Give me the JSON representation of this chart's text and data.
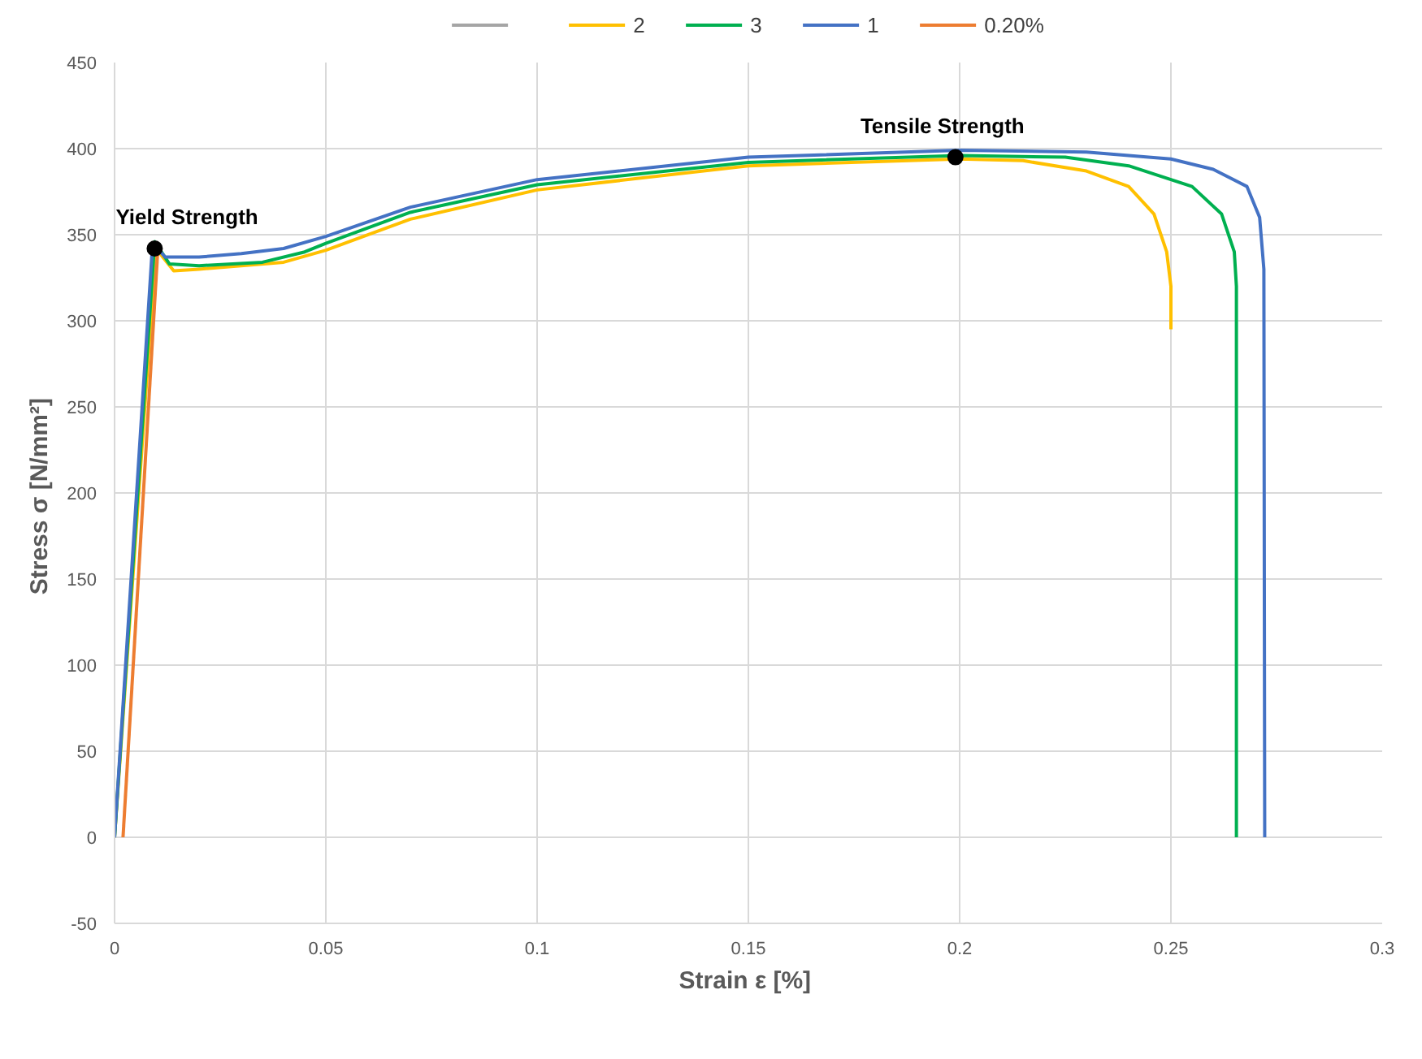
{
  "chart_data": {
    "type": "line",
    "xlabel": "Strain  ε [%]",
    "ylabel": "Stress  σ [N/mm²]",
    "xlim": [
      0,
      0.3
    ],
    "ylim": [
      -50,
      450
    ],
    "xticks": [
      0,
      0.05,
      0.1,
      0.15,
      0.2,
      0.25,
      0.3
    ],
    "yticks": [
      -50,
      0,
      50,
      100,
      150,
      200,
      250,
      300,
      350,
      400,
      450
    ],
    "grid": true,
    "legend": "top",
    "marker": "none",
    "line_style": "solid",
    "series": [
      {
        "color": "#a5a5a5"
      },
      {
        "name": "2",
        "color": "#ffc000",
        "x": [
          0,
          0.0098,
          0.014,
          0.02,
          0.04,
          0.05,
          0.07,
          0.1,
          0.15,
          0.2,
          0.215,
          0.23,
          0.24,
          0.246,
          0.249,
          0.25,
          0.25
        ],
        "values": [
          0,
          342,
          329,
          330,
          334,
          341,
          359,
          376,
          390,
          394,
          393,
          387,
          378,
          362,
          340,
          320,
          295
        ]
      },
      {
        "name": "3",
        "color": "#00b050",
        "x": [
          0,
          0.0095,
          0.013,
          0.02,
          0.035,
          0.045,
          0.05,
          0.07,
          0.1,
          0.15,
          0.2,
          0.225,
          0.24,
          0.255,
          0.262,
          0.265,
          0.2655,
          0.2655
        ],
        "values": [
          0,
          346,
          333,
          332,
          334,
          340,
          345,
          363,
          379,
          392,
          396,
          395,
          390,
          378,
          362,
          340,
          320,
          0
        ]
      },
      {
        "name": "1",
        "color": "#4472c4",
        "x": [
          0,
          0.009,
          0.012,
          0.02,
          0.03,
          0.04,
          0.05,
          0.07,
          0.1,
          0.15,
          0.2,
          0.23,
          0.25,
          0.26,
          0.268,
          0.271,
          0.272,
          0.2722
        ],
        "values": [
          0,
          345,
          337,
          337,
          339,
          342,
          349,
          366,
          382,
          395,
          399,
          398,
          394,
          388,
          378,
          360,
          330,
          0
        ]
      },
      {
        "name": "0.20%",
        "color": "#ed7d31",
        "x": [
          0.002,
          0.0102
        ],
        "values": [
          0,
          340
        ]
      },
      {
        "type": "scatter",
        "marker": "circle",
        "color": "#000000",
        "x": [
          0.0095,
          0.199
        ],
        "values": [
          342,
          395
        ]
      }
    ],
    "annotations": [
      {
        "text": "Yield Strength",
        "x": 0.0095,
        "y": 342
      },
      {
        "text": "Tensile Strength",
        "x": 0.199,
        "y": 395
      }
    ]
  }
}
